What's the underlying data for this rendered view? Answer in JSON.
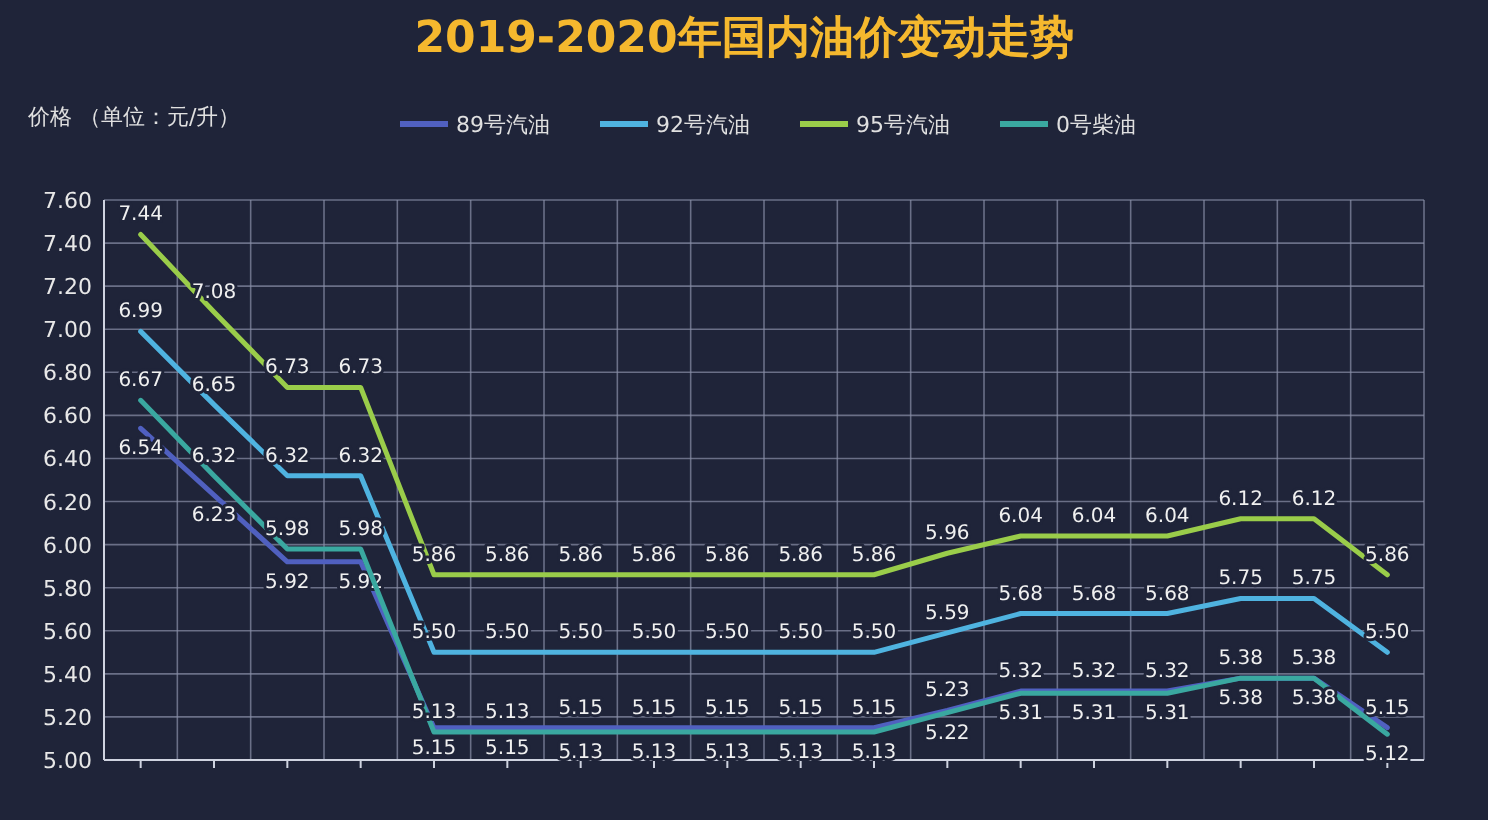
{
  "chart_data": {
    "type": "line",
    "title": "2019-2020年国内油价变动走势",
    "ylabel": "价格 （单位：元/升）",
    "categories": [
      null,
      null,
      null,
      null,
      null,
      null,
      null,
      null,
      null,
      null,
      null,
      null,
      null,
      null,
      null,
      null,
      null,
      null
    ],
    "ylim": [
      5.0,
      7.6
    ],
    "yticks": [
      {
        "value": 5.0,
        "label": "5.00"
      },
      {
        "value": 5.2,
        "label": "5.20"
      },
      {
        "value": 5.4,
        "label": "5.40"
      },
      {
        "value": 5.6,
        "label": "5.60"
      },
      {
        "value": 5.8,
        "label": "5.80"
      },
      {
        "value": 6.0,
        "label": "6.00"
      },
      {
        "value": 6.2,
        "label": "6.20"
      },
      {
        "value": 6.4,
        "label": "6.40"
      },
      {
        "value": 6.6,
        "label": "6.60"
      },
      {
        "value": 6.8,
        "label": "6.80"
      },
      {
        "value": 7.0,
        "label": "7.00"
      },
      {
        "value": 7.2,
        "label": "7.20"
      },
      {
        "value": 7.4,
        "label": "7.40"
      },
      {
        "value": 7.6,
        "label": "7.60"
      }
    ],
    "grid": true,
    "legend": "top",
    "marker": "none",
    "line_style": "solid",
    "series": [
      {
        "name": "89号汽油",
        "color": "#5060c0",
        "values": [
          6.54,
          6.23,
          5.92,
          5.92,
          5.15,
          5.15,
          5.15,
          5.15,
          5.15,
          5.15,
          5.15,
          5.23,
          5.32,
          5.32,
          5.32,
          5.38,
          5.38,
          5.15
        ],
        "value_labels": [
          "6.54",
          "6.23",
          "5.92",
          "5.92",
          "5.15",
          "5.15",
          "5.15",
          "5.15",
          "5.15",
          "5.15",
          "5.15",
          "5.23",
          "5.32",
          "5.32",
          "5.32",
          "5.38",
          "5.38",
          "5.15"
        ]
      },
      {
        "name": "92号汽油",
        "color": "#4fb3e0",
        "values": [
          6.99,
          6.65,
          6.32,
          6.32,
          5.5,
          5.5,
          5.5,
          5.5,
          5.5,
          5.5,
          5.5,
          5.59,
          5.68,
          5.68,
          5.68,
          5.75,
          5.75,
          5.5
        ],
        "value_labels": [
          "6.99",
          "6.65",
          "6.32",
          "6.32",
          "5.50",
          "5.50",
          "5.50",
          "5.50",
          "5.50",
          "5.50",
          "5.50",
          "5.59",
          "5.68",
          "5.68",
          "5.68",
          "5.75",
          "5.75",
          "5.50"
        ]
      },
      {
        "name": "95号汽油",
        "color": "#9acd4a",
        "values": [
          7.44,
          7.08,
          6.73,
          6.73,
          5.86,
          5.86,
          5.86,
          5.86,
          5.86,
          5.86,
          5.86,
          5.96,
          6.04,
          6.04,
          6.04,
          6.12,
          6.12,
          5.86
        ],
        "value_labels": [
          "7.44",
          "7.08",
          "6.73",
          "6.73",
          "5.86",
          "5.86",
          "5.86",
          "5.86",
          "5.86",
          "5.86",
          "5.86",
          "5.96",
          "6.04",
          "6.04",
          "6.04",
          "6.12",
          "6.12",
          "5.86"
        ]
      },
      {
        "name": "0号柴油",
        "color": "#3aa8a0",
        "values": [
          6.67,
          6.32,
          5.98,
          5.98,
          5.13,
          5.13,
          5.13,
          5.13,
          5.13,
          5.13,
          5.13,
          5.22,
          5.31,
          5.31,
          5.31,
          5.38,
          5.38,
          5.12
        ],
        "value_labels": [
          "6.67",
          "6.32",
          "5.98",
          "5.98",
          "5.13",
          "5.13",
          "5.13",
          "5.13",
          "5.13",
          "5.13",
          "5.13",
          "5.22",
          "5.31",
          "5.31",
          "5.31",
          "5.38",
          "5.38",
          "5.12"
        ]
      }
    ]
  }
}
